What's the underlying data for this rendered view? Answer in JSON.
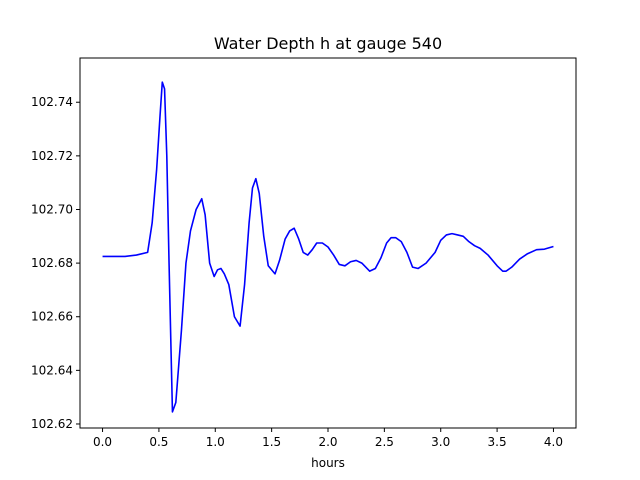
{
  "chart_data": {
    "type": "line",
    "title": "Water Depth h at gauge 540",
    "xlabel": "hours",
    "ylabel": "",
    "xlim": [
      -0.2,
      4.2
    ],
    "ylim": [
      102.6185,
      102.7565
    ],
    "x_ticks": [
      0.0,
      0.5,
      1.0,
      1.5,
      2.0,
      2.5,
      3.0,
      3.5,
      4.0
    ],
    "x_tick_labels": [
      "0.0",
      "0.5",
      "1.0",
      "1.5",
      "2.0",
      "2.5",
      "3.0",
      "3.5",
      "4.0"
    ],
    "y_ticks": [
      102.62,
      102.64,
      102.66,
      102.68,
      102.7,
      102.72,
      102.74
    ],
    "y_tick_labels": [
      "102.62",
      "102.64",
      "102.66",
      "102.68",
      "102.70",
      "102.72",
      "102.74"
    ],
    "grid": false,
    "series": [
      {
        "color": "#0000ff",
        "x": [
          0.0,
          0.1,
          0.2,
          0.3,
          0.4,
          0.44,
          0.48,
          0.51,
          0.53,
          0.55,
          0.57,
          0.59,
          0.62,
          0.65,
          0.7,
          0.74,
          0.78,
          0.83,
          0.88,
          0.91,
          0.95,
          0.99,
          1.02,
          1.05,
          1.08,
          1.12,
          1.17,
          1.22,
          1.26,
          1.3,
          1.33,
          1.36,
          1.39,
          1.43,
          1.47,
          1.53,
          1.57,
          1.62,
          1.66,
          1.7,
          1.74,
          1.78,
          1.82,
          1.86,
          1.9,
          1.95,
          2.0,
          2.05,
          2.1,
          2.15,
          2.2,
          2.25,
          2.3,
          2.37,
          2.42,
          2.47,
          2.52,
          2.56,
          2.6,
          2.65,
          2.7,
          2.75,
          2.8,
          2.87,
          2.95,
          3.0,
          3.05,
          3.1,
          3.15,
          3.2,
          3.25,
          3.3,
          3.35,
          3.42,
          3.5,
          3.55,
          3.58,
          3.63,
          3.7,
          3.77,
          3.85,
          3.92,
          4.0
        ],
        "y": [
          102.6825,
          102.6825,
          102.6825,
          102.683,
          102.684,
          102.695,
          102.715,
          102.735,
          102.7475,
          102.745,
          102.72,
          102.68,
          102.6245,
          102.628,
          102.655,
          102.68,
          102.692,
          102.7,
          102.704,
          102.698,
          102.68,
          102.675,
          102.6775,
          102.678,
          102.676,
          102.672,
          102.66,
          102.6565,
          102.672,
          102.695,
          102.708,
          102.7115,
          102.706,
          102.69,
          102.679,
          102.676,
          102.681,
          102.689,
          102.692,
          102.693,
          102.689,
          102.684,
          102.683,
          102.685,
          102.6875,
          102.6875,
          102.686,
          102.683,
          102.6795,
          102.679,
          102.6805,
          102.681,
          102.68,
          102.677,
          102.678,
          102.682,
          102.6875,
          102.6895,
          102.6895,
          102.688,
          102.684,
          102.6785,
          102.678,
          102.68,
          102.684,
          102.6885,
          102.6905,
          102.691,
          102.6905,
          102.69,
          102.688,
          102.6865,
          102.6855,
          102.683,
          102.679,
          102.677,
          102.677,
          102.6785,
          102.6815,
          102.6835,
          102.685,
          102.6852,
          102.6862
        ]
      }
    ]
  }
}
